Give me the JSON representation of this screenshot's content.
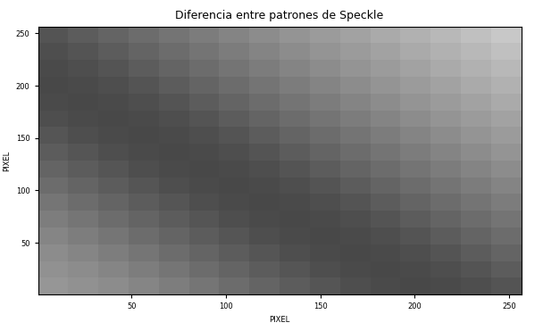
{
  "chart_data": {
    "type": "heatmap",
    "title": "Diferencia entre patrones de Speckle",
    "x_label": "PIXEL",
    "y_label": "PIXEL",
    "xlim": [
      0.5,
      256.5
    ],
    "ylim": [
      0.5,
      256.5
    ],
    "xticks": [
      50,
      100,
      150,
      200,
      250
    ],
    "yticks": [
      50,
      100,
      150,
      200,
      250
    ],
    "color": "gray",
    "x_edges": [
      0.5,
      16.5,
      32.5,
      48.5,
      64.5,
      80.5,
      96.5,
      112.5,
      128.5,
      144.5,
      160.5,
      176.5,
      192.5,
      208.5,
      224.5,
      240.5,
      256.5
    ],
    "y_edges": [
      0.5,
      16.5,
      32.5,
      48.5,
      64.5,
      80.5,
      96.5,
      112.5,
      128.5,
      144.5,
      160.5,
      176.5,
      192.5,
      208.5,
      224.5,
      240.5,
      256.5
    ],
    "value_range": [
      0,
      255
    ],
    "cells": [
      [
        150,
        145,
        140,
        133,
        125,
        117,
        108,
        100,
        92,
        85,
        78,
        74,
        72,
        74,
        78,
        84
      ],
      [
        145,
        140,
        133,
        125,
        117,
        108,
        100,
        92,
        85,
        78,
        74,
        72,
        74,
        78,
        84,
        92
      ],
      [
        140,
        133,
        125,
        117,
        108,
        100,
        92,
        85,
        78,
        74,
        72,
        74,
        78,
        84,
        92,
        100
      ],
      [
        133,
        125,
        117,
        108,
        100,
        92,
        85,
        78,
        74,
        72,
        74,
        78,
        84,
        92,
        100,
        108
      ],
      [
        125,
        117,
        108,
        100,
        92,
        85,
        78,
        74,
        72,
        74,
        78,
        84,
        92,
        100,
        108,
        116
      ],
      [
        117,
        108,
        100,
        92,
        85,
        78,
        74,
        72,
        74,
        78,
        84,
        92,
        100,
        108,
        116,
        124
      ],
      [
        108,
        100,
        92,
        85,
        78,
        74,
        72,
        74,
        78,
        84,
        92,
        100,
        108,
        116,
        124,
        132
      ],
      [
        100,
        92,
        85,
        78,
        74,
        72,
        74,
        78,
        84,
        92,
        100,
        108,
        116,
        124,
        132,
        140
      ],
      [
        92,
        85,
        78,
        74,
        72,
        74,
        78,
        84,
        92,
        100,
        108,
        116,
        124,
        132,
        140,
        148
      ],
      [
        85,
        78,
        74,
        72,
        74,
        78,
        84,
        92,
        100,
        108,
        116,
        124,
        132,
        140,
        148,
        155
      ],
      [
        78,
        74,
        72,
        74,
        78,
        84,
        92,
        100,
        108,
        116,
        124,
        132,
        140,
        148,
        155,
        162
      ],
      [
        74,
        72,
        74,
        78,
        84,
        92,
        100,
        108,
        116,
        124,
        132,
        140,
        148,
        155,
        162,
        170
      ],
      [
        72,
        74,
        78,
        84,
        92,
        100,
        108,
        116,
        124,
        132,
        140,
        148,
        155,
        162,
        170,
        177
      ],
      [
        74,
        78,
        84,
        92,
        100,
        108,
        116,
        124,
        132,
        140,
        148,
        155,
        162,
        170,
        177,
        184
      ],
      [
        78,
        84,
        92,
        100,
        108,
        116,
        124,
        132,
        140,
        148,
        155,
        162,
        170,
        177,
        184,
        192
      ],
      [
        84,
        92,
        100,
        108,
        116,
        124,
        132,
        140,
        148,
        155,
        162,
        170,
        177,
        184,
        192,
        200
      ]
    ]
  }
}
